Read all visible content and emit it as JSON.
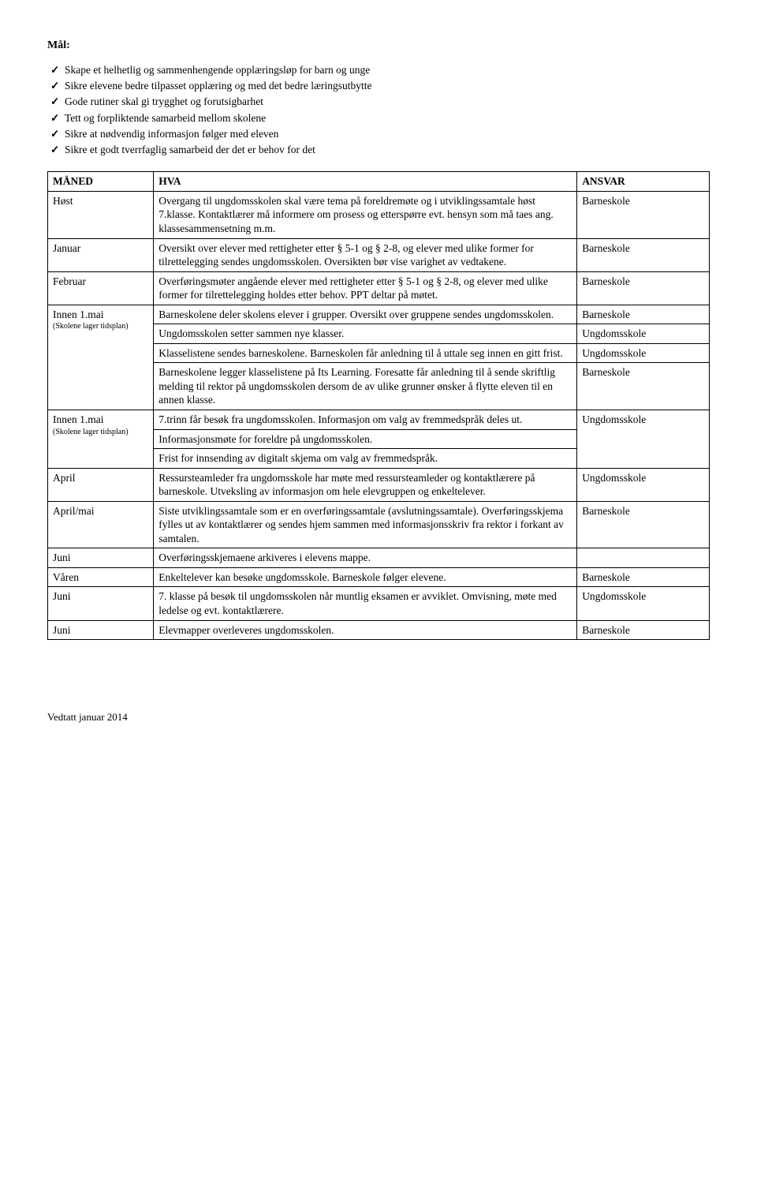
{
  "heading": "Mål:",
  "goals": [
    "Skape et helhetlig og sammenhengende opplæringsløp for barn og unge",
    "Sikre elevene bedre tilpasset opplæring og med det bedre læringsutbytte",
    "Gode rutiner skal gi trygghet og forutsigbarhet",
    "Tett og forpliktende samarbeid mellom skolene",
    "Sikre at nødvendig informasjon følger med eleven",
    "Sikre et godt tverrfaglig samarbeid der det er behov for det"
  ],
  "headers": {
    "c1": "MÅNED",
    "c2": "HVA",
    "c3": "ANSVAR"
  },
  "rows": [
    {
      "m": "Høst",
      "h": "Overgang til ungdomsskolen skal være tema på foreldremøte og i utviklingssamtale høst 7.klasse. Kontaktlærer må informere om prosess og etterspørre evt. hensyn som må taes ang. klassesammensetning m.m.",
      "a": "Barneskole"
    },
    {
      "m": "Januar",
      "h": "Oversikt over elever med rettigheter etter § 5-1 og § 2-8, og elever med ulike former for tilrettelegging sendes ungdomsskolen. Oversikten bør vise varighet av vedtakene.",
      "a": "Barneskole"
    },
    {
      "m": "Februar",
      "h": "Overføringsmøter angående elever med rettigheter etter § 5-1 og § 2-8, og elever med ulike former for tilrettelegging holdes etter behov. PPT deltar på møtet.",
      "a": "Barneskole"
    },
    {
      "m_main": "Innen 1.mai",
      "m_sub": "(Skolene lager tidsplan)",
      "m_rowspan": 4,
      "h": "Barneskolene deler skolens elever i grupper. Oversikt over gruppene sendes ungdomsskolen.",
      "a": "Barneskole"
    },
    {
      "h": "Ungdomsskolen setter sammen nye klasser.",
      "a": "Ungdomsskole"
    },
    {
      "h": "Klasselistene sendes barneskolene. Barneskolen får anledning til å uttale seg innen en gitt frist.",
      "a": "Ungdomsskole"
    },
    {
      "h": "Barneskolene legger klasselistene på Its Learning. Foresatte får anledning til å sende skriftlig melding til rektor på ungdomsskolen dersom de av ulike grunner ønsker å flytte eleven til en annen klasse.",
      "a": "Barneskole"
    },
    {
      "m_main": "Innen 1.mai",
      "m_sub": "(Skolene lager tidsplan)",
      "m_rowspan": 3,
      "h": "7.trinn får besøk fra ungdomsskolen. Informasjon om valg av fremmedspråk deles ut.",
      "a": "Ungdomsskole",
      "a_rowspan": 3
    },
    {
      "h": "Informasjonsmøte for foreldre på ungdomsskolen."
    },
    {
      "h": "Frist for innsending av digitalt skjema om valg av fremmedspråk."
    },
    {
      "m": "April",
      "h": "Ressursteamleder fra ungdomsskole har møte med ressursteamleder og kontaktlærere på barneskole. Utveksling av informasjon om hele elevgruppen og enkeltelever.",
      "a": "Ungdomsskole"
    },
    {
      "m": "April/mai",
      "h": "Siste utviklingssamtale som er en overføringssamtale (avslutningssamtale). Overføringsskjema fylles ut av kontaktlærer og sendes hjem sammen med informasjonsskriv fra rektor i forkant av samtalen.",
      "a": "Barneskole"
    },
    {
      "m": "Juni",
      "h": "Overføringsskjemaene arkiveres i elevens mappe.",
      "a": ""
    },
    {
      "m": "Våren",
      "h": "Enkeltelever kan besøke ungdomsskole. Barneskole følger elevene.",
      "a": "Barneskole"
    },
    {
      "m": "Juni",
      "h": "7. klasse på besøk til ungdomsskolen når muntlig eksamen er avviklet. Omvisning, møte med ledelse og evt. kontaktlærere.",
      "a": "Ungdomsskole"
    },
    {
      "m": "Juni",
      "h": "Elevmapper overleveres ungdomsskolen.",
      "a": "Barneskole"
    }
  ],
  "footer": "Vedtatt januar 2014"
}
